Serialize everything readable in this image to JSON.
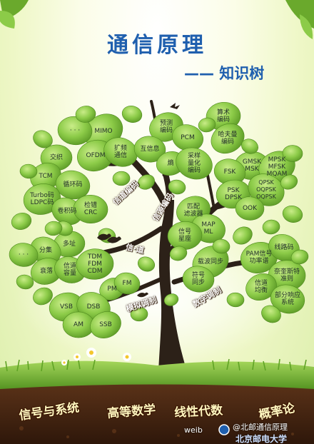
{
  "title": "通信原理",
  "subtitle": "—— 知识树",
  "branches": {
    "channel_coding": "信道编码",
    "source_coding": "信源编码",
    "channel": "信·道",
    "analog_modulation": "模拟调制",
    "digital_modulation": "数字调制"
  },
  "nodes": {
    "mimo": "MIMO",
    "dots_top": "· · ·",
    "ofdm": "OFDM",
    "spread": "扩频\n通信",
    "interleave": "交织",
    "tcm": "TCM",
    "cyclic": "循环码",
    "turbo_ldpc": "Turbo码\nLDPC码",
    "conv": "卷积码",
    "crc": "检错\nCRC",
    "predictive": "预测\n编码",
    "pcm": "PCM",
    "arithmetic": "算术\n编码",
    "huffman": "哈夫曼\n编码",
    "mutual_info": "互信息",
    "entropy": "熵",
    "sample": "采样\n量化\n编码",
    "gmsk": "GMSK\nMSK",
    "mpsk": "MPSK\nMFSK\nMQAM",
    "fsk": "FSK",
    "psk": "PSK\nDPSK",
    "qpsk": "QPSK\nOQPSK\nOQPSK",
    "ook": "OOK",
    "matched": "匹配\n滤波器",
    "map_ml": "MAP\nML",
    "constellation": "信号\n星座",
    "carrier_sync": "载波同步",
    "symbol_sync": "符号\n同步",
    "pam": "PAM信号\n功率谱",
    "line_code": "线路码",
    "nyquist": "奈奎斯特\n准则",
    "equalize": "信道\n均衡",
    "partial": "部分响应\n系统",
    "multipath": "多址",
    "diversity": "分集",
    "dots_left": "· · ·",
    "fading": "衰落",
    "capacity": "信道\n容量",
    "multiplex": "TDM\nFDM\nCDM",
    "pm": "PM",
    "fm": "FM",
    "vsb": "VSB",
    "dsb": "DSB",
    "am": "AM",
    "ssb": "SSB"
  },
  "courses": [
    "信号与系统",
    "高等数学",
    "线性代数",
    "概率论"
  ],
  "watermark": {
    "handle": "@北邮通信原理",
    "site": "weib",
    "logo_text": "北京邮电大学"
  },
  "colors": {
    "title_blue": "#1f5fae",
    "leaf_green": "#7dbb3c",
    "trunk": "#2c2118",
    "soil": "#4a2810",
    "grass": "#6ab02c"
  }
}
